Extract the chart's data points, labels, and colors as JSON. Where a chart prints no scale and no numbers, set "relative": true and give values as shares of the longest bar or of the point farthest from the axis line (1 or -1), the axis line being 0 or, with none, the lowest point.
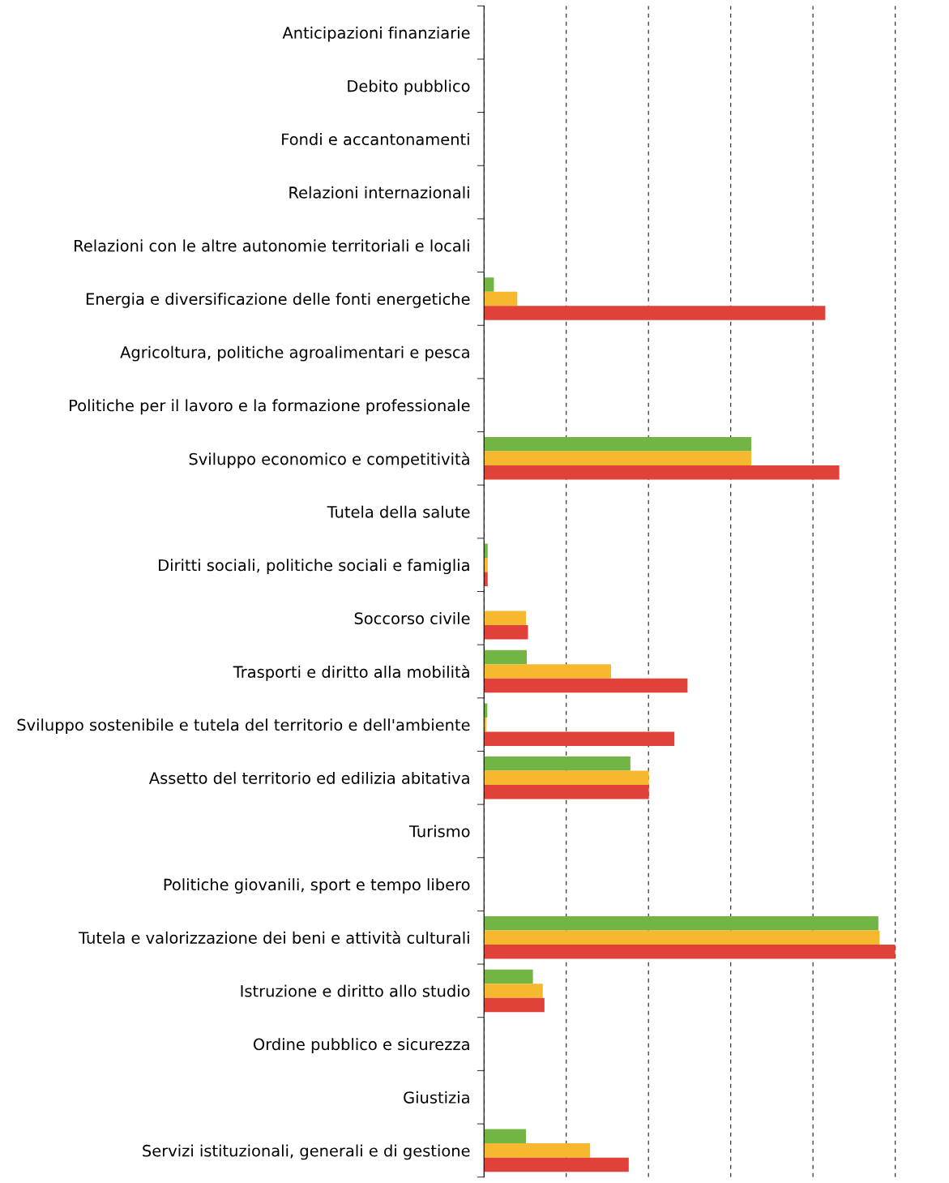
{
  "chart_data": {
    "type": "bar",
    "orientation": "horizontal",
    "relative": true,
    "grid": "x",
    "legend": false,
    "categories": [
      "Anticipazioni finanziarie",
      "Debito pubblico",
      "Fondi e accantonamenti",
      "Relazioni internazionali",
      "Relazioni con le altre autonomie territoriali e locali",
      "Energia e diversificazione delle fonti energetiche",
      "Agricoltura, politiche agroalimentari e pesca",
      "Politiche per il lavoro e la formazione professionale",
      "Sviluppo economico e competitività",
      "Tutela della salute",
      "Diritti sociali, politiche sociali e famiglia",
      "Soccorso civile",
      "Trasporti e diritto alla mobilità",
      "Sviluppo sostenibile e tutela del territorio e dell'ambiente",
      "Assetto del territorio ed edilizia abitativa",
      "Turismo",
      "Politiche giovanili, sport e tempo libero",
      "Tutela e valorizzazione dei beni e attività culturali",
      "Istruzione e diritto allo studio",
      "Ordine pubblico e sicurezza",
      "Giustizia",
      "Servizi istituzionali, generali e di gestione"
    ],
    "series": [
      {
        "color": "#72b544",
        "values": [
          0,
          0,
          0,
          0,
          0,
          0.024,
          0,
          0,
          0.65,
          0,
          0.009,
          0,
          0.104,
          0.008,
          0.356,
          0,
          0,
          0.959,
          0.119,
          0,
          0,
          0.102
        ]
      },
      {
        "color": "#f5b82e",
        "values": [
          0,
          0,
          0,
          0,
          0,
          0.081,
          0,
          0,
          0.65,
          0,
          0.009,
          0.102,
          0.309,
          0.006,
          0.401,
          0,
          0,
          0.962,
          0.143,
          0,
          0,
          0.258
        ]
      },
      {
        "color": "#e0423a",
        "values": [
          0,
          0,
          0,
          0,
          0,
          0.83,
          0,
          0,
          0.864,
          0,
          0.009,
          0.107,
          0.495,
          0.463,
          0.401,
          0,
          0,
          1,
          0.147,
          0,
          0,
          0.352
        ]
      }
    ]
  }
}
